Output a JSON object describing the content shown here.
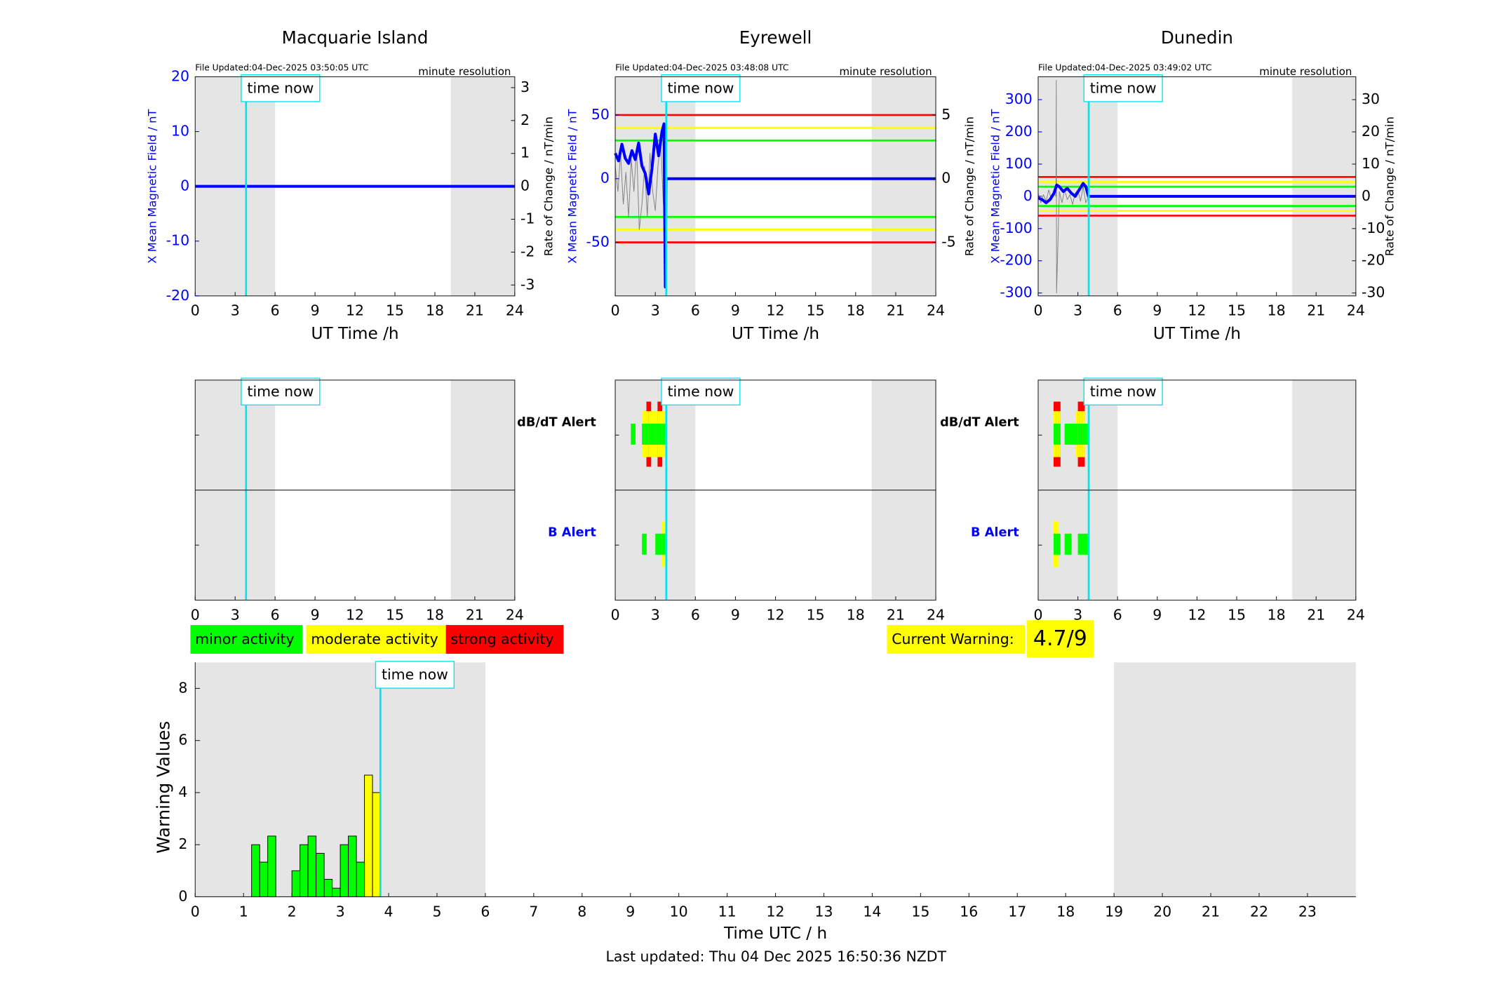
{
  "chart_data": [
    {
      "type": "line",
      "title": "Macquarie Island",
      "file_updated": "File Updated:04-Dec-2025 03:50:05 UTC",
      "resolution": "minute resolution",
      "ylabel": "X Mean Magnetic Field / nT",
      "y2label": "Rate of Change / nT/min",
      "xlabel": "UT Time /h",
      "xlim": [
        0,
        24
      ],
      "xticks": [
        0,
        3,
        6,
        9,
        12,
        15,
        18,
        21,
        24
      ],
      "ylim": [
        -20,
        20
      ],
      "yticks": [
        -20,
        -10,
        0,
        10,
        20
      ],
      "y2lim": [
        -3.33,
        3.33
      ],
      "y2ticks": [
        -3,
        -2,
        -1,
        0,
        1,
        2,
        3
      ],
      "shaded": [
        [
          0,
          6
        ],
        [
          19.2,
          24
        ]
      ],
      "time_now": 3.82,
      "time_now_label": "time now",
      "thresholds": [],
      "series": [
        {
          "color": "#0000ff",
          "x": [
            0,
            24
          ],
          "values": [
            0,
            0
          ]
        }
      ]
    },
    {
      "type": "line",
      "title": "Eyrewell",
      "file_updated": "File Updated:04-Dec-2025 03:48:08 UTC",
      "resolution": "minute resolution",
      "ylabel": "X Mean Magnetic Field / nT",
      "y2label": "Rate of Change / nT/min",
      "xlabel": "UT Time /h",
      "xlim": [
        0,
        24
      ],
      "xticks": [
        0,
        3,
        6,
        9,
        12,
        15,
        18,
        21,
        24
      ],
      "ylim": [
        -92,
        80
      ],
      "yticks": [
        -50,
        0,
        50
      ],
      "y2lim": [
        -9.2,
        8
      ],
      "y2ticks": [
        -5,
        0,
        5
      ],
      "shaded": [
        [
          0,
          6
        ],
        [
          19.2,
          24
        ]
      ],
      "time_now": 3.82,
      "time_now_label": "time now",
      "thresholds": [
        {
          "value": 5,
          "color": "#ff0000"
        },
        {
          "value": 4,
          "color": "#ffff00"
        },
        {
          "value": 3,
          "color": "#00ff00"
        },
        {
          "value": -3,
          "color": "#00ff00"
        },
        {
          "value": -4,
          "color": "#ffff00"
        },
        {
          "value": -5,
          "color": "#ff0000"
        }
      ],
      "series": [
        {
          "color": "#808080",
          "axis": "y2",
          "x": [
            0,
            0.2,
            0.4,
            0.6,
            0.8,
            1,
            1.2,
            1.4,
            1.6,
            1.8,
            2,
            2.2,
            2.4,
            2.6,
            2.8,
            3,
            3.2,
            3.4,
            3.6,
            3.8
          ],
          "values": [
            1,
            -1,
            2,
            -2,
            0.5,
            -3,
            1.5,
            -1,
            2.5,
            -4,
            -2,
            1,
            -3,
            2,
            -1,
            -2.5,
            1,
            3,
            -2,
            0
          ]
        },
        {
          "color": "#0000ff",
          "x": [
            0,
            0.25,
            0.5,
            0.75,
            1,
            1.25,
            1.5,
            1.75,
            2,
            2.25,
            2.5,
            2.75,
            3,
            3.25,
            3.5,
            3.65,
            3.75,
            3.8,
            24
          ],
          "values": [
            20,
            14,
            27,
            16,
            12,
            22,
            15,
            28,
            10,
            4,
            -12,
            8,
            35,
            18,
            37,
            43,
            -85,
            0,
            0
          ]
        }
      ]
    },
    {
      "type": "line",
      "title": "Dunedin",
      "file_updated": "File Updated:04-Dec-2025 03:49:02 UTC",
      "resolution": "minute resolution",
      "ylabel": "X Mean Magnetic Field / nT",
      "y2label": "Rate of Change / nT/min",
      "xlabel": "UT Time /h",
      "xlim": [
        0,
        24
      ],
      "xticks": [
        0,
        3,
        6,
        9,
        12,
        15,
        18,
        21,
        24
      ],
      "ylim": [
        -309,
        371
      ],
      "yticks": [
        -300,
        -200,
        -100,
        0,
        100,
        200,
        300
      ],
      "y2lim": [
        -30.9,
        37.1
      ],
      "y2ticks": [
        -30,
        -20,
        -10,
        0,
        10,
        20,
        30
      ],
      "shaded": [
        [
          0,
          6
        ],
        [
          19.2,
          24
        ]
      ],
      "time_now": 3.82,
      "time_now_label": "time now",
      "thresholds": [
        {
          "value": 6,
          "color": "#ff0000"
        },
        {
          "value": 4.5,
          "color": "#ffff00"
        },
        {
          "value": 3,
          "color": "#00ff00"
        },
        {
          "value": -3,
          "color": "#00ff00"
        },
        {
          "value": -4.5,
          "color": "#ffff00"
        },
        {
          "value": -6,
          "color": "#ff0000"
        }
      ],
      "series": [
        {
          "color": "#808080",
          "axis": "y2",
          "x": [
            0,
            0.2,
            0.4,
            0.6,
            0.8,
            1,
            1.2,
            1.35,
            1.37,
            1.39,
            1.6,
            1.8,
            2,
            2.2,
            2.4,
            2.6,
            2.8,
            3,
            3.2,
            3.4,
            3.6,
            3.8
          ],
          "values": [
            1,
            -2,
            0.5,
            -1.5,
            2,
            -1,
            1,
            0,
            36,
            -30,
            1.5,
            -2,
            2,
            -1,
            0.5,
            -2.5,
            1,
            2,
            -1.5,
            3,
            -2,
            0
          ]
        },
        {
          "color": "#0000ff",
          "x": [
            0,
            0.3,
            0.6,
            0.9,
            1.2,
            1.4,
            1.6,
            1.9,
            2.2,
            2.5,
            2.8,
            3.1,
            3.4,
            3.6,
            3.8,
            24
          ],
          "values": [
            -5,
            -10,
            -20,
            -10,
            10,
            35,
            30,
            15,
            25,
            10,
            0,
            20,
            40,
            30,
            0,
            0
          ]
        }
      ]
    },
    {
      "type": "alert",
      "xlim": [
        0,
        24
      ],
      "xticks": [
        0,
        3,
        6,
        9,
        12,
        15,
        18,
        21,
        24
      ],
      "shaded": [
        [
          0,
          6
        ],
        [
          19.2,
          24
        ]
      ],
      "time_now": 3.82,
      "time_now_label": "time now",
      "rows": []
    },
    {
      "type": "alert",
      "xlim": [
        0,
        24
      ],
      "xticks": [
        0,
        3,
        6,
        9,
        12,
        15,
        18,
        21,
        24
      ],
      "shaded": [
        [
          0,
          6
        ],
        [
          19.2,
          24
        ]
      ],
      "time_now": 3.82,
      "time_now_label": "time now",
      "rows": [
        {
          "label": "dB/dT Alert",
          "color": "#000000",
          "bins": [
            1.1667,
            1.3333,
            1.5,
            1.6667,
            1.8333,
            2,
            2.1667,
            2.3333,
            2.5,
            2.6667,
            2.8333,
            3,
            3.1667,
            3.3333,
            3.5,
            3.6667,
            3.8333
          ],
          "values": [
            1,
            1,
            0,
            0,
            0,
            2,
            2,
            3,
            3,
            2,
            2,
            2,
            3,
            3,
            2,
            1
          ]
        },
        {
          "label": "B Alert",
          "color": "#0000ff",
          "bins": [
            1.1667,
            1.3333,
            1.5,
            1.6667,
            1.8333,
            2,
            2.1667,
            2.3333,
            2.5,
            2.6667,
            2.8333,
            3,
            3.1667,
            3.3333,
            3.5,
            3.6667,
            3.8333
          ],
          "values": [
            0,
            0,
            0,
            0,
            0,
            1,
            1,
            0,
            0,
            0,
            0,
            1,
            1,
            1,
            2,
            1
          ]
        }
      ]
    },
    {
      "type": "alert",
      "xlim": [
        0,
        24
      ],
      "xticks": [
        0,
        3,
        6,
        9,
        12,
        15,
        18,
        21,
        24
      ],
      "shaded": [
        [
          0,
          6
        ],
        [
          19.2,
          24
        ]
      ],
      "time_now": 3.82,
      "time_now_label": "time now",
      "rows": [
        {
          "label": "dB/dT Alert",
          "color": "#000000",
          "bins": [
            1.1667,
            1.3333,
            1.5,
            1.6667,
            1.8333,
            2,
            2.1667,
            2.3333,
            2.5,
            2.6667,
            2.8333,
            3,
            3.1667,
            3.3333,
            3.5,
            3.6667,
            3.8333
          ],
          "values": [
            3,
            3,
            3,
            0,
            0,
            1,
            1,
            1,
            1,
            1,
            2,
            3,
            3,
            3,
            1,
            1
          ]
        },
        {
          "label": "B Alert",
          "color": "#0000ff",
          "bins": [
            1.1667,
            1.3333,
            1.5,
            1.6667,
            1.8333,
            2,
            2.1667,
            2.3333,
            2.5,
            2.6667,
            2.8333,
            3,
            3.1667,
            3.3333,
            3.5,
            3.6667,
            3.8333
          ],
          "values": [
            2,
            2,
            1,
            0,
            0,
            1,
            1,
            1,
            0,
            0,
            0,
            1,
            1,
            1,
            1,
            1
          ]
        }
      ]
    },
    {
      "type": "histogram",
      "ylabel": "Warning Values",
      "xlabel": "Time UTC / h",
      "xlim": [
        0,
        24
      ],
      "xticks": [
        0,
        1,
        2,
        3,
        4,
        5,
        6,
        7,
        8,
        9,
        10,
        11,
        12,
        13,
        14,
        15,
        16,
        17,
        18,
        19,
        20,
        21,
        22,
        23
      ],
      "ylim": [
        0,
        9
      ],
      "yticks": [
        0,
        2,
        4,
        6,
        8
      ],
      "shaded": [
        [
          0,
          6
        ],
        [
          19,
          24
        ]
      ],
      "time_now": 3.83,
      "time_now_label": "time now",
      "bins": [
        1.1667,
        1.3333,
        1.5,
        1.6667,
        1.8333,
        2,
        2.1667,
        2.3333,
        2.5,
        2.6667,
        2.8333,
        3,
        3.1667,
        3.3333,
        3.5,
        3.6667,
        3.8333
      ],
      "values": [
        2,
        1.33,
        2.33,
        0,
        0,
        1,
        2,
        2.33,
        1.67,
        0.67,
        0.33,
        2,
        2.33,
        1.33,
        4.67,
        4
      ],
      "colors": [
        "#00ff00",
        "#00ff00",
        "#00ff00",
        "#00ff00",
        "#00ff00",
        "#00ff00",
        "#00ff00",
        "#00ff00",
        "#00ff00",
        "#00ff00",
        "#00ff00",
        "#00ff00",
        "#00ff00",
        "#00ff00",
        "#ffff00",
        "#ffff00"
      ]
    }
  ],
  "legend": [
    {
      "label": "minor activity",
      "color": "#00ff00"
    },
    {
      "label": "moderate activity",
      "color": "#ffff00"
    },
    {
      "label": "strong activity",
      "color": "#ff0000"
    }
  ],
  "current_warning": {
    "label": "Current Warning:",
    "value": "4.7/9",
    "color": "#ffff00"
  },
  "footer": "Last updated: Thu 04 Dec 2025 16:50:36 NZDT"
}
